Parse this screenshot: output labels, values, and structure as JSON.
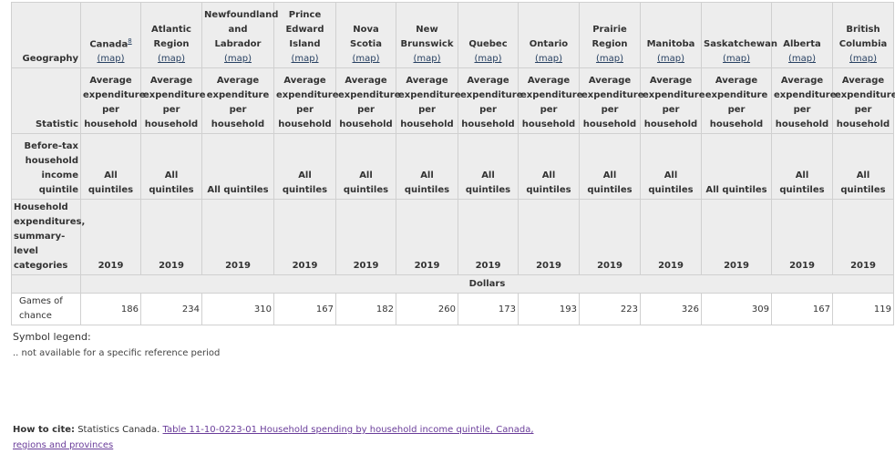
{
  "header": {
    "geography_label": "Geography",
    "statistic_label": "Statistic",
    "quintile_label": "Before-tax household income quintile",
    "category_label": "Household expenditures, summary-level categories",
    "map_label": "(map)",
    "canada_footnote": "8",
    "unit_label": "Dollars"
  },
  "geographies": [
    {
      "name": "Canada",
      "statistic": "Average expenditure per household",
      "quintile": "All quintiles",
      "year": "2019"
    },
    {
      "name": "Atlantic Region",
      "statistic": "Average expenditure per household",
      "quintile": "All quintiles",
      "year": "2019"
    },
    {
      "name": "Newfoundland and Labrador",
      "statistic": "Average expenditure per household",
      "quintile": "All quintiles",
      "year": "2019"
    },
    {
      "name": "Prince Edward Island",
      "statistic": "Average expenditure per household",
      "quintile": "All quintiles",
      "year": "2019"
    },
    {
      "name": "Nova Scotia",
      "statistic": "Average expenditure per household",
      "quintile": "All quintiles",
      "year": "2019"
    },
    {
      "name": "New Brunswick",
      "statistic": "Average expenditure per household",
      "quintile": "All quintiles",
      "year": "2019"
    },
    {
      "name": "Quebec",
      "statistic": "Average expenditure per household",
      "quintile": "All quintiles",
      "year": "2019"
    },
    {
      "name": "Ontario",
      "statistic": "Average expenditure per household",
      "quintile": "All quintiles",
      "year": "2019"
    },
    {
      "name": "Prairie Region",
      "statistic": "Average expenditure per household",
      "quintile": "All quintiles",
      "year": "2019"
    },
    {
      "name": "Manitoba",
      "statistic": "Average expenditure per household",
      "quintile": "All quintiles",
      "year": "2019"
    },
    {
      "name": "Saskatchewan",
      "statistic": "Average expenditure per household",
      "quintile": "All quintiles",
      "year": "2019"
    },
    {
      "name": "Alberta",
      "statistic": "Average expenditure per household",
      "quintile": "All quintiles",
      "year": "2019"
    },
    {
      "name": "British Columbia",
      "statistic": "Average expenditure per household",
      "quintile": "All quintiles",
      "year": "2019"
    }
  ],
  "rows": [
    {
      "label": "Games of chance",
      "values": [
        "186",
        "234",
        "310",
        "167",
        "182",
        "260",
        "173",
        "193",
        "223",
        "326",
        "309",
        "167",
        "119"
      ]
    }
  ],
  "legend": {
    "title": "Symbol legend:",
    "items": [
      ".. not available for a specific reference period"
    ]
  },
  "citation": {
    "label": "How to cite:",
    "text": "Statistics Canada.",
    "link_text": "Table 11-10-0223-01  Household spending by household income quintile, Canada, regions and provinces"
  }
}
